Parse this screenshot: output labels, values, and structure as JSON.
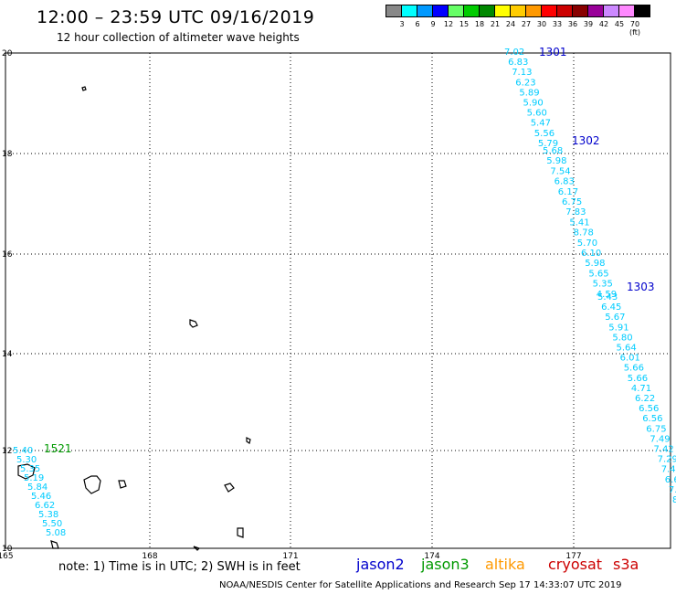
{
  "title": "12:00 – 23:59 UTC 09/16/2019",
  "subtitle": "12 hour collection of altimeter wave heights",
  "scale": {
    "colors": [
      "#888888",
      "#00ffff",
      "#0099ff",
      "#0000ff",
      "#66ff66",
      "#00cc00",
      "#008800",
      "#ffff00",
      "#ffcc00",
      "#ff9900",
      "#ff0000",
      "#cc0000",
      "#880000",
      "#990099",
      "#cc88ff",
      "#ff88ff",
      "#000000"
    ],
    "labels": [
      "3",
      "6",
      "9",
      "12",
      "15",
      "18",
      "21",
      "24",
      "27",
      "30",
      "33",
      "36",
      "39",
      "42",
      "45",
      "70 (ft)"
    ]
  },
  "axes": {
    "lon_labels": [
      "165",
      "168",
      "171",
      "174",
      "177"
    ],
    "lat_labels": [
      "20",
      "18",
      "16",
      "14",
      "12",
      "10"
    ]
  },
  "tracks": [
    {
      "id": "1301",
      "satellite": "jason2",
      "color": "#00ccff",
      "values": [
        "7.02",
        "6.83",
        "7.13",
        "6.23",
        "5.89",
        "5.90",
        "5.60",
        "5.47",
        "5.56",
        "5.79"
      ]
    },
    {
      "id": "1302",
      "satellite": "jason2",
      "color": "#00ccff",
      "values": [
        "5.68",
        "5.98",
        "7.54",
        "6.83",
        "6.17",
        "6.75",
        "7.83",
        "5.41",
        "8.78",
        "5.70",
        "6.10",
        "5.98",
        "5.65",
        "5.35",
        "4.59"
      ]
    },
    {
      "id": "1303",
      "satellite": "jason2",
      "color": "#00ccff",
      "values": [
        "5.43",
        "6.45",
        "5.67",
        "5.91",
        "5.80",
        "5.64",
        "6.01",
        "5.66",
        "5.66",
        "4.71",
        "6.22",
        "6.56",
        "6.56",
        "6.75",
        "7.49",
        "7.42",
        "7.29",
        "7.4",
        "6.6",
        "7.",
        "8."
      ]
    },
    {
      "id": "1521",
      "satellite": "jason3",
      "color": "#00ccff",
      "values": [
        "5.40",
        "5.30",
        "5.35",
        "5.19",
        "5.84",
        "5.46",
        "6.62",
        "5.38",
        "5.50",
        "5.08"
      ]
    }
  ],
  "note": "note: 1) Time is in UTC; 2) SWH is in feet",
  "legend": [
    {
      "name": "jason2",
      "color": "#0000cc"
    },
    {
      "name": "jason3",
      "color": "#009900"
    },
    {
      "name": "altika",
      "color": "#ff9900"
    },
    {
      "name": "cryosat",
      "color": "#cc0000"
    },
    {
      "name": "s3a",
      "color": "#cc0000"
    }
  ],
  "footer": "NOAA/NESDIS Center for Satellite Applications and Research     Sep 17 14:33:07 UTC 2019"
}
